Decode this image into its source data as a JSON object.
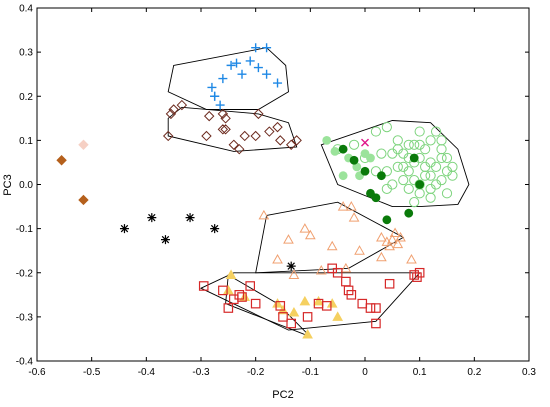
{
  "chart_data": {
    "type": "scatter",
    "xlabel": "PC2",
    "ylabel": "PC3",
    "xlim": [
      -0.6,
      0.3
    ],
    "ylim": [
      -0.4,
      0.4
    ],
    "xticks": [
      "-0.6",
      "-0.5",
      "-0.4",
      "-0.3",
      "-0.2",
      "-0.1",
      "0",
      "0.1",
      "0.2",
      "0.3"
    ],
    "yticks": [
      "-0.4",
      "-0.3",
      "-0.2",
      "-0.1",
      "0.0",
      "0.1",
      "0.2",
      "0.3",
      "0.4"
    ],
    "grid": false,
    "legend": "none",
    "series": [
      {
        "marker": "plus",
        "color": "#1e88e5",
        "points": [
          [
            -0.245,
            0.27
          ],
          [
            -0.235,
            0.275
          ],
          [
            -0.225,
            0.25
          ],
          [
            -0.21,
            0.28
          ],
          [
            -0.2,
            0.31
          ],
          [
            -0.195,
            0.265
          ],
          [
            -0.18,
            0.25
          ],
          [
            -0.18,
            0.31
          ],
          [
            -0.16,
            0.23
          ],
          [
            -0.275,
            0.2
          ],
          [
            -0.265,
            0.18
          ],
          [
            -0.26,
            0.24
          ],
          [
            -0.28,
            0.22
          ],
          [
            -0.275,
            0.2
          ]
        ],
        "hull": [
          [
            -0.35,
            0.27
          ],
          [
            -0.18,
            0.31
          ],
          [
            -0.145,
            0.27
          ],
          [
            -0.14,
            0.21
          ],
          [
            -0.195,
            0.17
          ],
          [
            -0.29,
            0.17
          ],
          [
            -0.36,
            0.21
          ]
        ]
      },
      {
        "marker": "diamond-open",
        "color": "#6d2b1f",
        "points": [
          [
            -0.355,
            0.16
          ],
          [
            -0.35,
            0.17
          ],
          [
            -0.36,
            0.11
          ],
          [
            -0.335,
            0.18
          ],
          [
            -0.29,
            0.11
          ],
          [
            -0.285,
            0.155
          ],
          [
            -0.26,
            0.16
          ],
          [
            -0.255,
            0.125
          ],
          [
            -0.255,
            0.15
          ],
          [
            -0.24,
            0.09
          ],
          [
            -0.22,
            0.11
          ],
          [
            -0.2,
            0.11
          ],
          [
            -0.195,
            0.16
          ],
          [
            -0.175,
            0.12
          ],
          [
            -0.16,
            0.13
          ],
          [
            -0.155,
            0.1
          ],
          [
            -0.135,
            0.09
          ],
          [
            -0.125,
            0.1
          ],
          [
            -0.23,
            0.08
          ],
          [
            -0.26,
            0.125
          ]
        ],
        "hull": [
          [
            -0.36,
            0.15
          ],
          [
            -0.335,
            0.175
          ],
          [
            -0.195,
            0.16
          ],
          [
            -0.14,
            0.14
          ],
          [
            -0.125,
            0.085
          ],
          [
            -0.24,
            0.075
          ],
          [
            -0.36,
            0.11
          ]
        ]
      },
      {
        "marker": "diamond-filled",
        "color": "#b5601c",
        "points": [
          [
            -0.555,
            0.055
          ],
          [
            -0.515,
            -0.035
          ]
        ],
        "hull": []
      },
      {
        "marker": "diamond-filled",
        "color": "#f6d0c4",
        "points": [
          [
            -0.515,
            0.09
          ]
        ],
        "hull": []
      },
      {
        "marker": "asterisk",
        "color": "#000000",
        "points": [
          [
            -0.44,
            -0.1
          ],
          [
            -0.39,
            -0.075
          ],
          [
            -0.365,
            -0.125
          ],
          [
            -0.32,
            -0.075
          ],
          [
            -0.275,
            -0.1
          ],
          [
            -0.135,
            -0.185
          ]
        ],
        "hull": []
      },
      {
        "marker": "circle-open",
        "color": "#7ed47e",
        "points": [
          [
            0.02,
            0.12
          ],
          [
            0.04,
            0.13
          ],
          [
            0.05,
            0.07
          ],
          [
            0.06,
            0.1
          ],
          [
            0.07,
            0.04
          ],
          [
            0.08,
            0.06
          ],
          [
            0.09,
            0.09
          ],
          [
            0.1,
            0.12
          ],
          [
            0.11,
            0.02
          ],
          [
            0.12,
            0.05
          ],
          [
            0.13,
            0.0
          ],
          [
            0.14,
            0.08
          ],
          [
            0.15,
            0.03
          ],
          [
            0.16,
            0.02
          ],
          [
            0.08,
            -0.01
          ],
          [
            0.1,
            -0.02
          ],
          [
            0.12,
            -0.01
          ],
          [
            0.09,
            0.01
          ],
          [
            0.11,
            0.04
          ],
          [
            0.13,
            0.04
          ],
          [
            0.06,
            0.04
          ],
          [
            0.05,
            0.0
          ],
          [
            0.07,
            0.01
          ],
          [
            0.1,
            0.06
          ],
          [
            0.12,
            0.1
          ],
          [
            0.14,
            0.06
          ],
          [
            0.08,
            0.09
          ],
          [
            0.03,
            0.07
          ],
          [
            0.04,
            -0.01
          ],
          [
            0.1,
            0.0
          ],
          [
            0.13,
            0.12
          ],
          [
            0.14,
            0.1
          ],
          [
            0.02,
            0.03
          ],
          [
            -0.02,
            0.09
          ],
          [
            -0.05,
            0.08
          ],
          [
            0.0,
            0.06
          ],
          [
            0.15,
            0.06
          ],
          [
            0.16,
            0.04
          ],
          [
            0.06,
            0.08
          ],
          [
            0.04,
            0.03
          ],
          [
            0.11,
            0.08
          ],
          [
            0.09,
            -0.04
          ],
          [
            0.12,
            -0.03
          ],
          [
            0.15,
            -0.02
          ],
          [
            0.07,
            0.07
          ],
          [
            0.09,
            0.05
          ],
          [
            0.12,
            0.02
          ],
          [
            0.08,
            0.03
          ],
          [
            0.1,
            0.09
          ],
          [
            0.14,
            0.01
          ]
        ],
        "hull": [
          [
            -0.08,
            0.09
          ],
          [
            0.05,
            0.145
          ],
          [
            0.12,
            0.14
          ],
          [
            0.17,
            0.08
          ],
          [
            0.19,
            0.0
          ],
          [
            0.17,
            -0.045
          ],
          [
            0.1,
            -0.05
          ],
          [
            0.05,
            -0.05
          ],
          [
            -0.05,
            0.0
          ]
        ]
      },
      {
        "marker": "circle-filled",
        "color": "#9be39b",
        "points": [
          [
            -0.07,
            0.1
          ],
          [
            -0.055,
            0.075
          ],
          [
            -0.03,
            0.06
          ],
          [
            -0.015,
            0.04
          ],
          [
            -0.04,
            0.02
          ],
          [
            0.0,
            0.07
          ],
          [
            -0.01,
            0.02
          ],
          [
            0.01,
            0.06
          ]
        ],
        "hull": []
      },
      {
        "marker": "circle-filled",
        "color": "#0a7a0a",
        "points": [
          [
            -0.04,
            0.08
          ],
          [
            -0.02,
            0.055
          ],
          [
            0.0,
            0.03
          ],
          [
            0.01,
            -0.02
          ],
          [
            0.02,
            -0.03
          ],
          [
            0.03,
            0.02
          ],
          [
            0.04,
            -0.08
          ],
          [
            0.08,
            -0.065
          ],
          [
            0.09,
            0.06
          ],
          [
            0.1,
            0.0
          ]
        ],
        "hull": []
      },
      {
        "marker": "x",
        "color": "#e0158a",
        "points": [
          [
            0.0,
            0.095
          ]
        ],
        "hull": []
      },
      {
        "marker": "triangle-open",
        "color": "#f0a070",
        "points": [
          [
            -0.185,
            -0.07
          ],
          [
            -0.16,
            -0.17
          ],
          [
            -0.14,
            -0.125
          ],
          [
            -0.1,
            -0.115
          ],
          [
            -0.08,
            -0.195
          ],
          [
            -0.06,
            -0.14
          ],
          [
            -0.04,
            -0.05
          ],
          [
            -0.025,
            -0.05
          ],
          [
            -0.02,
            -0.075
          ],
          [
            -0.01,
            -0.15
          ],
          [
            0.03,
            -0.165
          ],
          [
            0.045,
            -0.14
          ],
          [
            0.05,
            -0.125
          ],
          [
            0.055,
            -0.11
          ],
          [
            0.06,
            -0.135
          ],
          [
            0.085,
            -0.17
          ],
          [
            -0.13,
            -0.205
          ],
          [
            0.04,
            -0.13
          ],
          [
            -0.035,
            -0.19
          ],
          [
            0.065,
            -0.12
          ],
          [
            -0.11,
            -0.1
          ],
          [
            0.03,
            -0.12
          ]
        ],
        "hull": [
          [
            -0.18,
            -0.07
          ],
          [
            -0.05,
            -0.04
          ],
          [
            0.07,
            -0.12
          ],
          [
            -0.03,
            -0.19
          ],
          [
            -0.2,
            -0.2
          ]
        ]
      },
      {
        "marker": "triangle-filled",
        "color": "#f5d060",
        "points": [
          [
            -0.245,
            -0.205
          ],
          [
            -0.25,
            -0.24
          ],
          [
            -0.22,
            -0.255
          ],
          [
            -0.16,
            -0.27
          ],
          [
            -0.15,
            -0.285
          ],
          [
            -0.13,
            -0.29
          ],
          [
            -0.11,
            -0.265
          ],
          [
            -0.105,
            -0.34
          ],
          [
            -0.085,
            -0.265
          ],
          [
            -0.06,
            -0.27
          ],
          [
            -0.05,
            -0.3
          ]
        ],
        "hull": [
          [
            -0.25,
            -0.205
          ],
          [
            -0.16,
            -0.27
          ],
          [
            -0.1,
            -0.345
          ],
          [
            -0.255,
            -0.27
          ]
        ]
      },
      {
        "marker": "square-open",
        "color": "#d62828",
        "points": [
          [
            -0.295,
            -0.23
          ],
          [
            -0.26,
            -0.24
          ],
          [
            -0.24,
            -0.26
          ],
          [
            -0.23,
            -0.25
          ],
          [
            -0.21,
            -0.23
          ],
          [
            -0.25,
            -0.28
          ],
          [
            -0.225,
            -0.255
          ],
          [
            -0.2,
            -0.27
          ],
          [
            -0.155,
            -0.275
          ],
          [
            -0.15,
            -0.3
          ],
          [
            -0.135,
            -0.315
          ],
          [
            -0.105,
            -0.3
          ],
          [
            -0.085,
            -0.27
          ],
          [
            -0.06,
            -0.19
          ],
          [
            -0.05,
            -0.2
          ],
          [
            -0.035,
            -0.22
          ],
          [
            -0.03,
            -0.24
          ],
          [
            -0.025,
            -0.25
          ],
          [
            -0.005,
            -0.27
          ],
          [
            0.01,
            -0.28
          ],
          [
            0.02,
            -0.28
          ],
          [
            0.045,
            -0.225
          ],
          [
            0.09,
            -0.205
          ],
          [
            0.095,
            -0.21
          ],
          [
            0.1,
            -0.2
          ],
          [
            0.02,
            -0.315
          ],
          [
            -0.07,
            -0.275
          ]
        ],
        "hull": [
          [
            -0.3,
            -0.235
          ],
          [
            -0.24,
            -0.2
          ],
          [
            0.1,
            -0.2
          ],
          [
            0.02,
            -0.31
          ],
          [
            -0.14,
            -0.33
          ]
        ]
      }
    ]
  }
}
